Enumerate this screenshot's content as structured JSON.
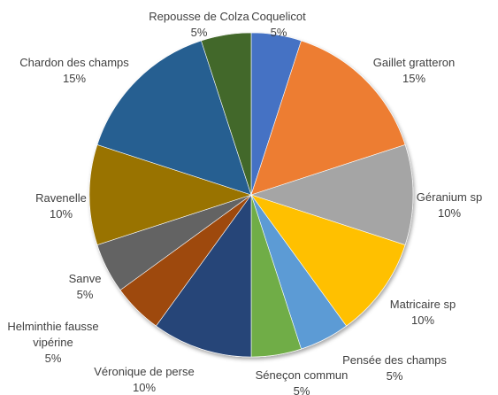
{
  "chart_data": {
    "type": "pie",
    "title": "",
    "slices": [
      {
        "label": "Coquelicot",
        "value": 5,
        "value_label": "5%",
        "color": "#4472C4"
      },
      {
        "label": "Gaillet gratteron",
        "value": 15,
        "value_label": "15%",
        "color": "#ED7D31"
      },
      {
        "label": "Géranium sp",
        "value": 10,
        "value_label": "10%",
        "color": "#A5A5A5"
      },
      {
        "label": "Matricaire sp",
        "value": 10,
        "value_label": "10%",
        "color": "#FFC000"
      },
      {
        "label": "Pensée des champs",
        "value": 5,
        "value_label": "5%",
        "color": "#5B9BD5"
      },
      {
        "label": "Séneçon commun",
        "value": 5,
        "value_label": "5%",
        "color": "#70AD47"
      },
      {
        "label": "Véronique de perse",
        "value": 10,
        "value_label": "10%",
        "color": "#264478"
      },
      {
        "label": "Helminthie fausse vipérine",
        "value": 5,
        "value_label": "5%",
        "color": "#9E480E"
      },
      {
        "label": "Sanve",
        "value": 5,
        "value_label": "5%",
        "color": "#636363"
      },
      {
        "label": "Ravenelle",
        "value": 10,
        "value_label": "10%",
        "color": "#997300"
      },
      {
        "label": "Chardon des champs",
        "value": 15,
        "value_label": "15%",
        "color": "#255E91"
      },
      {
        "label": "Repousse de Colza",
        "value": 5,
        "value_label": "5%",
        "color": "#43682B"
      }
    ],
    "legend": "none",
    "start_angle": "top",
    "direction": "clockwise"
  }
}
